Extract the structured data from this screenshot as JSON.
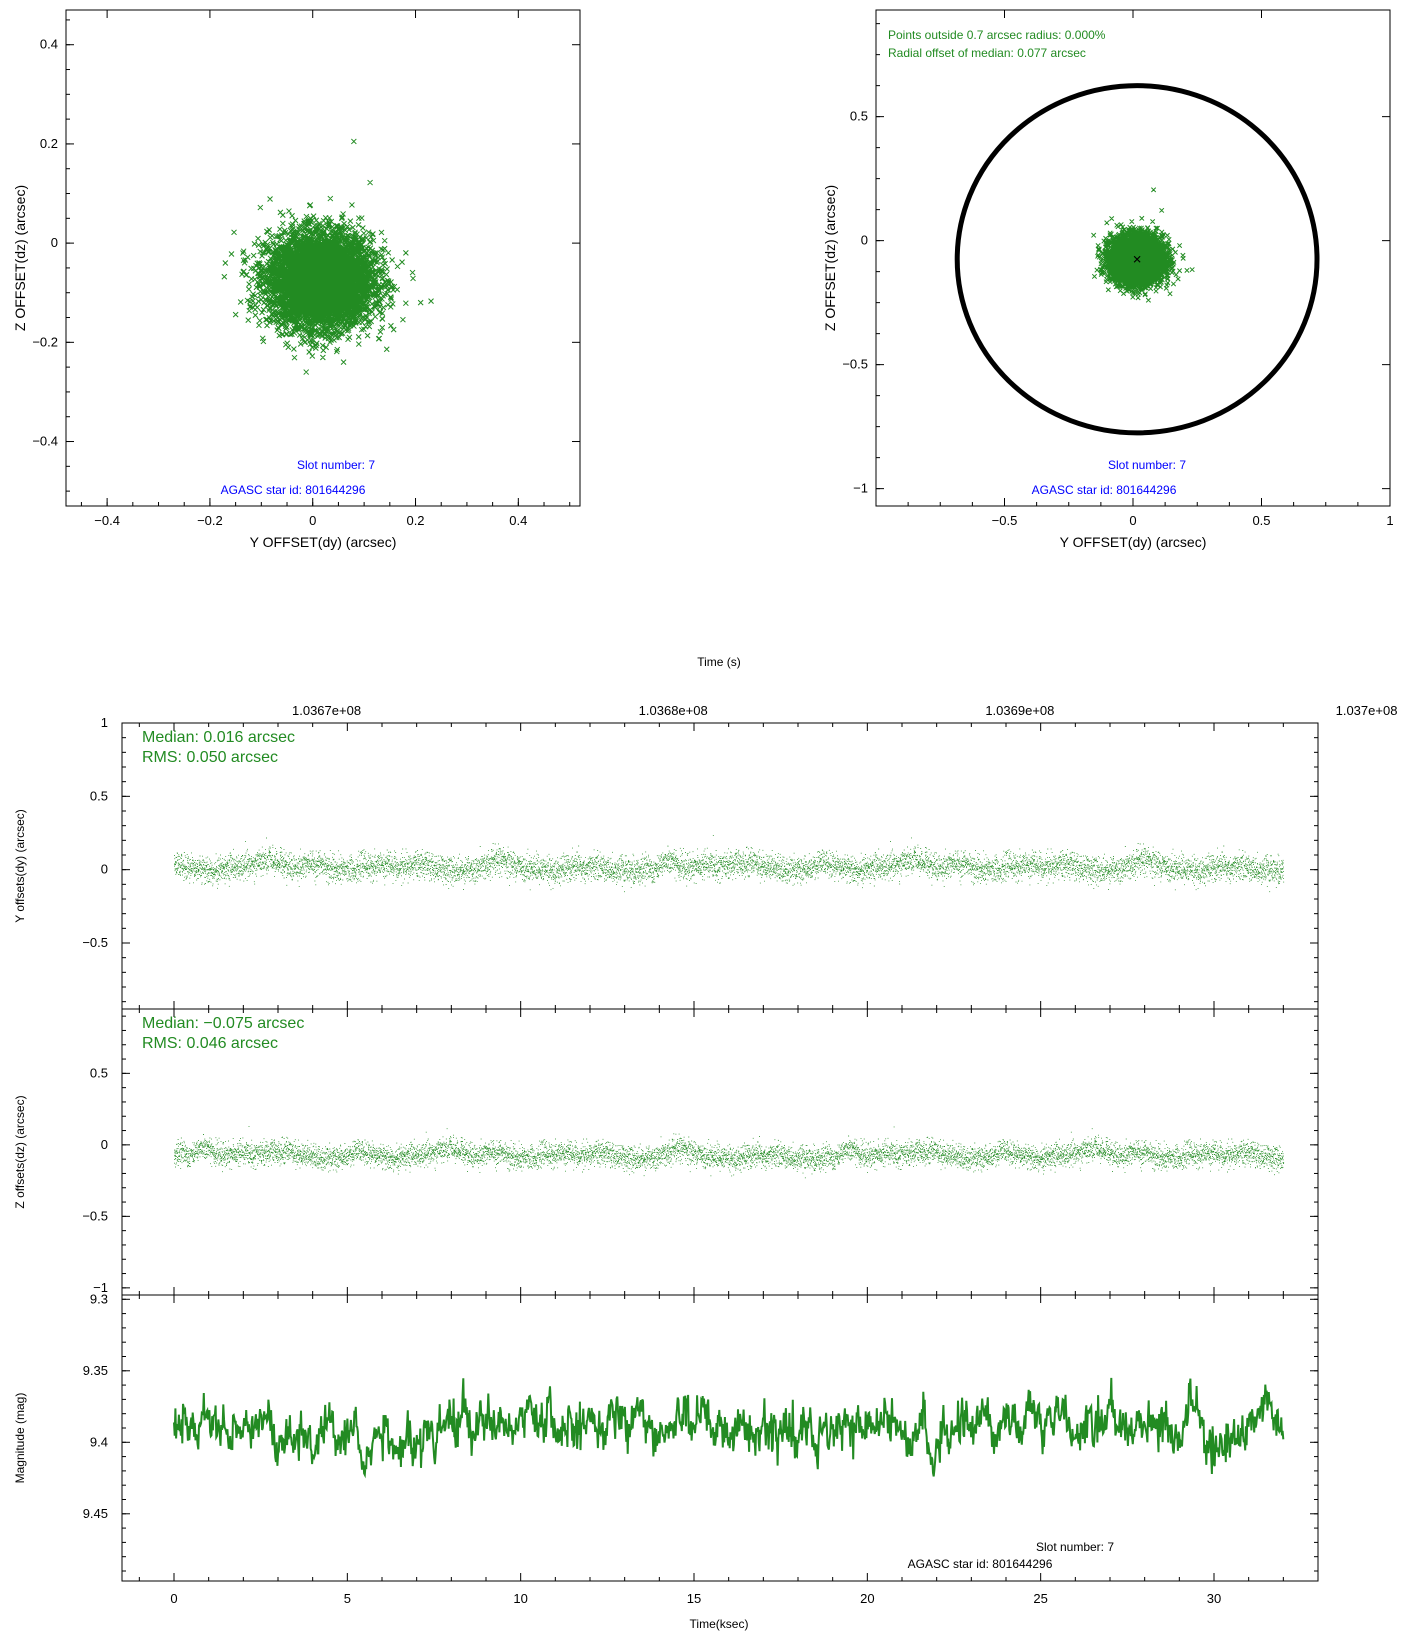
{
  "colors": {
    "data": "#228b22",
    "info_blue": "#0000ff",
    "frame": "#000000"
  },
  "chart_data": [
    {
      "type": "scatter",
      "xlabel": "Y OFFSET(dy) (arcsec)",
      "ylabel": "Z OFFSET(dz) (arcsec)",
      "xlim": [
        -0.48,
        0.52
      ],
      "ylim": [
        -0.53,
        0.47
      ],
      "xticks": [
        -0.4,
        -0.2,
        0,
        0.2,
        0.4
      ],
      "xtick_labels": [
        "−0.4",
        "−0.2",
        "0",
        "0.2",
        "0.4"
      ],
      "yticks": [
        -0.4,
        -0.2,
        0,
        0.2,
        0.4
      ],
      "ytick_labels": [
        "−0.4",
        "−0.2",
        "0",
        "0.2",
        "0.4"
      ],
      "point_marker": "x",
      "center": [
        0.016,
        -0.075
      ],
      "spread_rms": [
        0.05,
        0.046
      ],
      "outliers": [
        [
          0.08,
          0.205
        ],
        [
          0.21,
          -0.12
        ],
        [
          0.06,
          -0.24
        ],
        [
          -0.17,
          -0.04
        ]
      ],
      "annotations": [
        "Slot number: 7",
        "AGASC star id: 801644296"
      ],
      "grid": false
    },
    {
      "type": "scatter",
      "xlabel": "Y OFFSET(dy) (arcsec)",
      "ylabel": "Z OFFSET(dz) (arcsec)",
      "xlim": [
        -1.0,
        1.0
      ],
      "ylim": [
        -1.07,
        0.93
      ],
      "xticks": [
        -0.5,
        0,
        0.5,
        1
      ],
      "xtick_labels": [
        "−0.5",
        "0",
        "0.5",
        "1"
      ],
      "yticks": [
        -1,
        -0.5,
        0,
        0.5
      ],
      "ytick_labels": [
        "−1",
        "−0.5",
        "0",
        "0.5"
      ],
      "circle": {
        "center": [
          0.016,
          -0.075
        ],
        "radius": 0.7
      },
      "median_marker": [
        0.016,
        -0.075
      ],
      "center": [
        0.016,
        -0.075
      ],
      "spread_rms": [
        0.05,
        0.046
      ],
      "outliers": [
        [
          0.08,
          0.205
        ],
        [
          0.21,
          -0.12
        ],
        [
          0.06,
          -0.24
        ]
      ],
      "annotations": [
        "Points outside 0.7 arcsec radius: 0.000%",
        "Radial offset of median: 0.077 arcsec"
      ],
      "info": [
        "Slot number: 7",
        "AGASC star id: 801644296"
      ],
      "grid": false
    },
    {
      "type": "scatter",
      "ylabel": "Y offsets(dy) (arcsec)",
      "ylim": [
        -0.95,
        1.0
      ],
      "yticks": [
        -0.5,
        0,
        0.5,
        1
      ],
      "ytick_labels": [
        "−0.5",
        "0",
        "0.5",
        "1"
      ],
      "x_range_ksec": [
        0,
        32
      ],
      "median": 0.016,
      "rms": 0.05,
      "annotations": [
        "Median: 0.016 arcsec",
        "RMS: 0.050 arcsec"
      ],
      "top_axis_title": "Time (s)",
      "top_ticks": [
        103670000,
        103680000,
        103690000,
        103700000
      ],
      "top_tick_labels": [
        "1.0367e+08",
        "1.0368e+08",
        "1.0369e+08",
        "1.037e+08"
      ]
    },
    {
      "type": "scatter",
      "ylabel": "Z offsets(dz) (arcsec)",
      "ylim": [
        -1.05,
        0.95
      ],
      "yticks": [
        -1,
        -0.5,
        0,
        0.5
      ],
      "ytick_labels": [
        "−1",
        "−0.5",
        "0",
        "0.5"
      ],
      "x_range_ksec": [
        0,
        32
      ],
      "median": -0.075,
      "rms": 0.046,
      "annotations": [
        "Median: −0.075 arcsec",
        "RMS: 0.046 arcsec"
      ]
    },
    {
      "type": "line",
      "ylabel": "Magnitude (mag)",
      "ylim": [
        9.297,
        9.497
      ],
      "y_inverted": true,
      "yticks": [
        9.3,
        9.35,
        9.4,
        9.45
      ],
      "ytick_labels": [
        "9.3",
        "9.35",
        "9.4",
        "9.45"
      ],
      "xlabel": "Time(ksec)",
      "xlim": [
        -1.5,
        33
      ],
      "xticks": [
        0,
        5,
        10,
        15,
        20,
        25,
        30
      ],
      "xtick_labels": [
        "0",
        "5",
        "10",
        "15",
        "20",
        "25",
        "30"
      ],
      "x_range_ksec": [
        0,
        32
      ],
      "mean": 9.39,
      "range": [
        9.355,
        9.448
      ],
      "annotations": [
        "Slot number: 7",
        "AGASC star id: 801644296"
      ]
    }
  ]
}
